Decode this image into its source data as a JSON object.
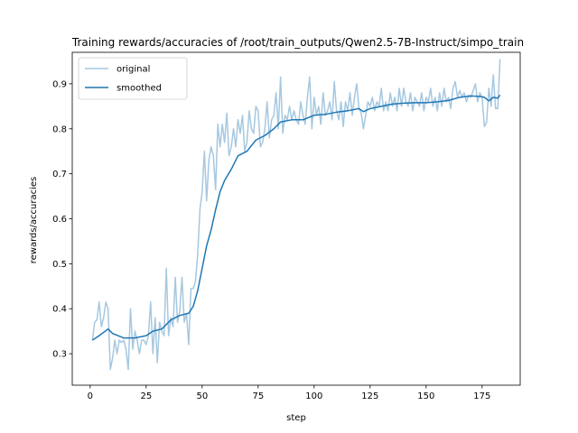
{
  "chart_data": {
    "type": "line",
    "title": "Training rewards/accuracies of /root/train_outputs/Qwen2.5-7B-Instruct/simpo_train",
    "xlabel": "step",
    "ylabel": "rewards/accuracies",
    "xlim": [
      -8,
      192
    ],
    "ylim": [
      0.23,
      0.97
    ],
    "xticks": [
      0,
      25,
      50,
      75,
      100,
      125,
      150,
      175
    ],
    "yticks": [
      0.3,
      0.4,
      0.5,
      0.6,
      0.7,
      0.8,
      0.9
    ],
    "grid": false,
    "legend_position": "top-left",
    "colors": {
      "original": "#a6c8e0",
      "smoothed": "#1f77b4"
    },
    "series": [
      {
        "name": "original",
        "points": [
          [
            1,
            0.33
          ],
          [
            2,
            0.37
          ],
          [
            3,
            0.375
          ],
          [
            4,
            0.415
          ],
          [
            5,
            0.36
          ],
          [
            6,
            0.38
          ],
          [
            7,
            0.415
          ],
          [
            8,
            0.4
          ],
          [
            9,
            0.265
          ],
          [
            10,
            0.29
          ],
          [
            11,
            0.33
          ],
          [
            12,
            0.3
          ],
          [
            13,
            0.33
          ],
          [
            14,
            0.325
          ],
          [
            15,
            0.33
          ],
          [
            16,
            0.31
          ],
          [
            17,
            0.265
          ],
          [
            18,
            0.4
          ],
          [
            19,
            0.31
          ],
          [
            20,
            0.35
          ],
          [
            21,
            0.33
          ],
          [
            22,
            0.3
          ],
          [
            23,
            0.33
          ],
          [
            24,
            0.33
          ],
          [
            25,
            0.32
          ],
          [
            26,
            0.34
          ],
          [
            27,
            0.415
          ],
          [
            28,
            0.3
          ],
          [
            29,
            0.38
          ],
          [
            30,
            0.28
          ],
          [
            31,
            0.37
          ],
          [
            32,
            0.35
          ],
          [
            33,
            0.34
          ],
          [
            34,
            0.49
          ],
          [
            35,
            0.34
          ],
          [
            36,
            0.38
          ],
          [
            37,
            0.36
          ],
          [
            38,
            0.47
          ],
          [
            39,
            0.37
          ],
          [
            40,
            0.395
          ],
          [
            41,
            0.47
          ],
          [
            42,
            0.37
          ],
          [
            43,
            0.39
          ],
          [
            44,
            0.32
          ],
          [
            45,
            0.445
          ],
          [
            46,
            0.445
          ],
          [
            47,
            0.46
          ],
          [
            48,
            0.52
          ],
          [
            49,
            0.62
          ],
          [
            50,
            0.66
          ],
          [
            51,
            0.75
          ],
          [
            52,
            0.64
          ],
          [
            53,
            0.73
          ],
          [
            54,
            0.76
          ],
          [
            55,
            0.74
          ],
          [
            56,
            0.665
          ],
          [
            57,
            0.81
          ],
          [
            58,
            0.76
          ],
          [
            59,
            0.81
          ],
          [
            60,
            0.77
          ],
          [
            61,
            0.835
          ],
          [
            62,
            0.74
          ],
          [
            63,
            0.76
          ],
          [
            64,
            0.8
          ],
          [
            65,
            0.76
          ],
          [
            66,
            0.82
          ],
          [
            67,
            0.79
          ],
          [
            68,
            0.83
          ],
          [
            69,
            0.75
          ],
          [
            70,
            0.77
          ],
          [
            71,
            0.84
          ],
          [
            72,
            0.8
          ],
          [
            73,
            0.79
          ],
          [
            74,
            0.85
          ],
          [
            75,
            0.84
          ],
          [
            76,
            0.76
          ],
          [
            77,
            0.77
          ],
          [
            78,
            0.8
          ],
          [
            79,
            0.86
          ],
          [
            80,
            0.78
          ],
          [
            81,
            0.82
          ],
          [
            82,
            0.83
          ],
          [
            83,
            0.88
          ],
          [
            84,
            0.8
          ],
          [
            85,
            0.915
          ],
          [
            86,
            0.79
          ],
          [
            87,
            0.83
          ],
          [
            88,
            0.82
          ],
          [
            89,
            0.85
          ],
          [
            90,
            0.82
          ],
          [
            91,
            0.84
          ],
          [
            92,
            0.82
          ],
          [
            93,
            0.81
          ],
          [
            94,
            0.86
          ],
          [
            95,
            0.83
          ],
          [
            96,
            0.81
          ],
          [
            97,
            0.87
          ],
          [
            98,
            0.915
          ],
          [
            99,
            0.8
          ],
          [
            100,
            0.87
          ],
          [
            101,
            0.83
          ],
          [
            102,
            0.85
          ],
          [
            103,
            0.81
          ],
          [
            104,
            0.88
          ],
          [
            105,
            0.83
          ],
          [
            106,
            0.84
          ],
          [
            107,
            0.86
          ],
          [
            108,
            0.82
          ],
          [
            109,
            0.905
          ],
          [
            110,
            0.84
          ],
          [
            111,
            0.82
          ],
          [
            112,
            0.86
          ],
          [
            113,
            0.805
          ],
          [
            114,
            0.86
          ],
          [
            115,
            0.84
          ],
          [
            116,
            0.88
          ],
          [
            117,
            0.83
          ],
          [
            118,
            0.87
          ],
          [
            119,
            0.9
          ],
          [
            120,
            0.845
          ],
          [
            121,
            0.835
          ],
          [
            122,
            0.8
          ],
          [
            123,
            0.83
          ],
          [
            124,
            0.86
          ],
          [
            125,
            0.85
          ],
          [
            126,
            0.87
          ],
          [
            127,
            0.84
          ],
          [
            128,
            0.86
          ],
          [
            129,
            0.85
          ],
          [
            130,
            0.89
          ],
          [
            131,
            0.84
          ],
          [
            132,
            0.86
          ],
          [
            133,
            0.84
          ],
          [
            134,
            0.88
          ],
          [
            135,
            0.85
          ],
          [
            136,
            0.87
          ],
          [
            137,
            0.84
          ],
          [
            138,
            0.89
          ],
          [
            139,
            0.85
          ],
          [
            140,
            0.89
          ],
          [
            141,
            0.86
          ],
          [
            142,
            0.85
          ],
          [
            143,
            0.88
          ],
          [
            144,
            0.84
          ],
          [
            145,
            0.87
          ],
          [
            146,
            0.86
          ],
          [
            147,
            0.85
          ],
          [
            148,
            0.88
          ],
          [
            149,
            0.84
          ],
          [
            150,
            0.87
          ],
          [
            151,
            0.86
          ],
          [
            152,
            0.89
          ],
          [
            153,
            0.85
          ],
          [
            154,
            0.87
          ],
          [
            155,
            0.84
          ],
          [
            156,
            0.88
          ],
          [
            157,
            0.85
          ],
          [
            158,
            0.89
          ],
          [
            159,
            0.86
          ],
          [
            160,
            0.87
          ],
          [
            161,
            0.845
          ],
          [
            162,
            0.89
          ],
          [
            163,
            0.905
          ],
          [
            164,
            0.87
          ],
          [
            165,
            0.885
          ],
          [
            166,
            0.87
          ],
          [
            167,
            0.88
          ],
          [
            168,
            0.86
          ],
          [
            169,
            0.875
          ],
          [
            170,
            0.87
          ],
          [
            171,
            0.885
          ],
          [
            172,
            0.9
          ],
          [
            173,
            0.86
          ],
          [
            174,
            0.88
          ],
          [
            175,
            0.87
          ],
          [
            176,
            0.805
          ],
          [
            177,
            0.815
          ],
          [
            178,
            0.89
          ],
          [
            179,
            0.85
          ],
          [
            180,
            0.92
          ],
          [
            181,
            0.845
          ],
          [
            182,
            0.845
          ],
          [
            183,
            0.955
          ]
        ]
      },
      {
        "name": "smoothed",
        "points": [
          [
            1,
            0.33
          ],
          [
            4,
            0.34
          ],
          [
            8,
            0.355
          ],
          [
            10,
            0.345
          ],
          [
            15,
            0.335
          ],
          [
            20,
            0.335
          ],
          [
            25,
            0.34
          ],
          [
            28,
            0.35
          ],
          [
            32,
            0.355
          ],
          [
            36,
            0.375
          ],
          [
            40,
            0.385
          ],
          [
            44,
            0.39
          ],
          [
            46,
            0.405
          ],
          [
            48,
            0.44
          ],
          [
            50,
            0.49
          ],
          [
            52,
            0.54
          ],
          [
            54,
            0.575
          ],
          [
            56,
            0.62
          ],
          [
            58,
            0.66
          ],
          [
            60,
            0.685
          ],
          [
            63,
            0.71
          ],
          [
            66,
            0.74
          ],
          [
            70,
            0.75
          ],
          [
            74,
            0.775
          ],
          [
            78,
            0.785
          ],
          [
            82,
            0.8
          ],
          [
            85,
            0.815
          ],
          [
            90,
            0.82
          ],
          [
            95,
            0.82
          ],
          [
            100,
            0.83
          ],
          [
            105,
            0.832
          ],
          [
            110,
            0.837
          ],
          [
            115,
            0.84
          ],
          [
            120,
            0.845
          ],
          [
            122,
            0.838
          ],
          [
            125,
            0.845
          ],
          [
            130,
            0.85
          ],
          [
            135,
            0.855
          ],
          [
            140,
            0.857
          ],
          [
            145,
            0.858
          ],
          [
            150,
            0.858
          ],
          [
            155,
            0.86
          ],
          [
            160,
            0.863
          ],
          [
            165,
            0.87
          ],
          [
            170,
            0.873
          ],
          [
            174,
            0.872
          ],
          [
            176,
            0.87
          ],
          [
            178,
            0.862
          ],
          [
            180,
            0.87
          ],
          [
            182,
            0.868
          ],
          [
            183,
            0.875
          ]
        ]
      }
    ]
  }
}
